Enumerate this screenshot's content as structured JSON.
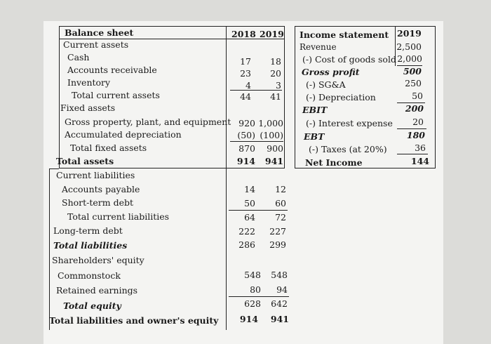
{
  "balance_sheet": {
    "title": "Balance sheet",
    "years": [
      "2018",
      "2019"
    ],
    "rows": [
      {
        "label": "Current assets",
        "v2018": "",
        "v2019": ""
      },
      {
        "label": "Cash",
        "v2018": "17",
        "v2019": "18"
      },
      {
        "label": "Accounts receivable",
        "v2018": "23",
        "v2019": "20"
      },
      {
        "label": "Inventory",
        "v2018": "4",
        "v2019": "3"
      },
      {
        "label": "Total current assets",
        "v2018": "44",
        "v2019": "41"
      },
      {
        "label": "Fixed assets",
        "v2018": "",
        "v2019": ""
      },
      {
        "label": "Gross property, plant, and equipment",
        "v2018": "920",
        "v2019": "1,000"
      },
      {
        "label": "Accumulated depreciation",
        "v2018": "(50)",
        "v2019": "(100)"
      },
      {
        "label": "Total fixed assets",
        "v2018": "870",
        "v2019": "900"
      },
      {
        "label": "Total assets",
        "v2018": "914",
        "v2019": "941"
      },
      {
        "label": "Current liabilities",
        "v2018": "",
        "v2019": ""
      },
      {
        "label": "Accounts payable",
        "v2018": "14",
        "v2019": "12"
      },
      {
        "label": "Short-term debt",
        "v2018": "50",
        "v2019": "60"
      },
      {
        "label": "Total current liabilities",
        "v2018": "64",
        "v2019": "72"
      },
      {
        "label": "Long-term debt",
        "v2018": "222",
        "v2019": "227"
      },
      {
        "label": "Total liabilities",
        "v2018": "286",
        "v2019": "299"
      },
      {
        "label": "Shareholders' equity",
        "v2018": "",
        "v2019": ""
      },
      {
        "label": "Commonstock",
        "v2018": "548",
        "v2019": "548"
      },
      {
        "label": "Retained earnings",
        "v2018": "80",
        "v2019": "94"
      },
      {
        "label": "Total equity",
        "v2018": "628",
        "v2019": "642"
      },
      {
        "label": "Total liabilities and owner's equity",
        "v2018": "914",
        "v2019": "941"
      }
    ]
  },
  "income_statement": {
    "title": "Income statement",
    "year": "2019",
    "rows": [
      {
        "label": "Revenue",
        "value": "2,500"
      },
      {
        "label": "(-) Cost of goods sold",
        "value": "2,000"
      },
      {
        "label": "Gross profit",
        "value": "500"
      },
      {
        "label": "(-) SG&A",
        "value": "250"
      },
      {
        "label": "(-) Depreciation",
        "value": "50"
      },
      {
        "label": "EBIT",
        "value": "200"
      },
      {
        "label": "(-) Interest expense",
        "value": "20"
      },
      {
        "label": "EBT",
        "value": "180"
      },
      {
        "label": "(-) Taxes (at 20%)",
        "value": "36"
      },
      {
        "label": "Net Income",
        "value": "144"
      }
    ]
  }
}
